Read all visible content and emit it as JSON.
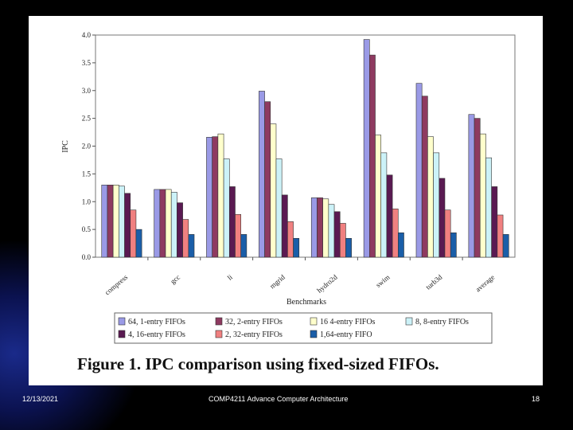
{
  "footer": {
    "date": "12/13/2021",
    "course": "COMP4211 Advance Computer Architecture",
    "page": "18"
  },
  "caption": "Figure 1. IPC comparison using fixed-sized FIFOs.",
  "chart_data": {
    "type": "bar",
    "title": "",
    "xlabel": "Benchmarks",
    "ylabel": "IPC",
    "ylim": [
      0,
      4.0
    ],
    "yticks": [
      "0.0",
      "0.5",
      "1.0",
      "1.5",
      "2.0",
      "2.5",
      "3.0",
      "3.5",
      "4.0"
    ],
    "grid": false,
    "legend_position": "bottom",
    "categories": [
      "compress",
      "gcc",
      "li",
      "mgrid",
      "hydro2d",
      "swim",
      "turb3d",
      "average"
    ],
    "series": [
      {
        "name": "64, 1-entry FIFOs",
        "color": "#9a9ae6",
        "values": [
          1.3,
          1.22,
          2.16,
          2.99,
          1.07,
          3.92,
          3.13,
          2.57
        ]
      },
      {
        "name": "32, 2-entry FIFOs",
        "color": "#8e3a60",
        "values": [
          1.3,
          1.22,
          2.17,
          2.8,
          1.07,
          3.64,
          2.9,
          2.5
        ]
      },
      {
        "name": "16 4-entry FIFOs",
        "color": "#ffffcc",
        "values": [
          1.3,
          1.22,
          2.22,
          2.4,
          1.05,
          2.2,
          2.17,
          2.22
        ]
      },
      {
        "name": "8, 8-entry FIFOs",
        "color": "#ccf2f8",
        "values": [
          1.28,
          1.17,
          1.77,
          1.77,
          0.95,
          1.88,
          1.88,
          1.79
        ]
      },
      {
        "name": "4, 16-entry FIFOs",
        "color": "#5a1a52",
        "values": [
          1.15,
          0.98,
          1.27,
          1.12,
          0.82,
          1.48,
          1.42,
          1.27
        ]
      },
      {
        "name": "2, 32-entry FIFOs",
        "color": "#f08080",
        "values": [
          0.85,
          0.68,
          0.77,
          0.64,
          0.61,
          0.87,
          0.85,
          0.76
        ]
      },
      {
        "name": "1,64-entry FIFO",
        "color": "#1a5ea8",
        "values": [
          0.5,
          0.41,
          0.41,
          0.34,
          0.34,
          0.44,
          0.44,
          0.41
        ]
      }
    ]
  }
}
